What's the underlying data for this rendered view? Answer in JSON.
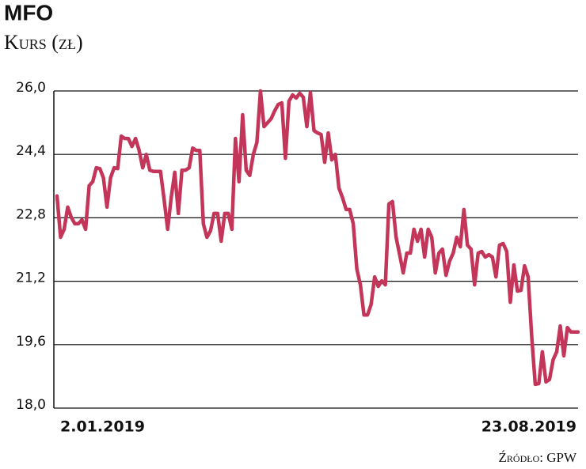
{
  "chart_data": {
    "type": "line",
    "title": "MFO",
    "subtitle": "Kurs (zł)",
    "source": "Źródło: GPW",
    "color": "#c4355a",
    "grid": true,
    "ylim": [
      18,
      26
    ],
    "yticks": [
      {
        "value": 18,
        "label": "18,0"
      },
      {
        "value": 19.6,
        "label": "19,6"
      },
      {
        "value": 21.2,
        "label": "21,2"
      },
      {
        "value": 22.8,
        "label": "22,8"
      },
      {
        "value": 24.4,
        "label": "24,4"
      },
      {
        "value": 26,
        "label": "26,0"
      }
    ],
    "categories": [
      "2.01.2019",
      null,
      null,
      null,
      null,
      null,
      null,
      null,
      null,
      null,
      null,
      null,
      null,
      null,
      null,
      null,
      null,
      null,
      null,
      null,
      null,
      null,
      null,
      null,
      null,
      null,
      null,
      null,
      null,
      null,
      null,
      null,
      null,
      null,
      null,
      null,
      null,
      null,
      null,
      null,
      null,
      null,
      null,
      null,
      null,
      null,
      null,
      null,
      null,
      null,
      null,
      null,
      null,
      null,
      null,
      null,
      null,
      null,
      null,
      null,
      null,
      null,
      null,
      null,
      null,
      null,
      null,
      null,
      null,
      null,
      null,
      null,
      null,
      null,
      null,
      null,
      null,
      null,
      null,
      null,
      null,
      null,
      null,
      null,
      null,
      null,
      null,
      null,
      null,
      null,
      null,
      null,
      null,
      null,
      null,
      null,
      null,
      null,
      null,
      null,
      null,
      null,
      null,
      null,
      null,
      null,
      null,
      null,
      null,
      null,
      null,
      null,
      null,
      null,
      null,
      null,
      null,
      null,
      null,
      null,
      null,
      null,
      null,
      null,
      null,
      null,
      null,
      null,
      null,
      null,
      null,
      null,
      null,
      null,
      null,
      null,
      null,
      null,
      null,
      null,
      null,
      null,
      null,
      null,
      null,
      null,
      "23.08.2019"
    ],
    "values": [
      23.35,
      22.31,
      22.51,
      23.07,
      22.81,
      22.65,
      22.65,
      22.75,
      22.51,
      23.61,
      23.71,
      24.06,
      24.04,
      23.81,
      23.07,
      23.81,
      24.06,
      24.04,
      24.86,
      24.8,
      24.8,
      24.6,
      24.8,
      24.5,
      24.06,
      24.4,
      24.0,
      23.97,
      23.97,
      23.97,
      23.27,
      22.51,
      23.31,
      23.95,
      22.91,
      24.0,
      24.0,
      24.06,
      24.56,
      24.5,
      24.5,
      22.65,
      22.31,
      22.47,
      22.91,
      22.91,
      22.21,
      22.91,
      22.91,
      22.51,
      24.8,
      23.71,
      25.4,
      24.0,
      23.87,
      24.4,
      24.7,
      26.0,
      25.1,
      25.2,
      25.3,
      25.5,
      25.66,
      25.7,
      24.3,
      25.74,
      25.9,
      25.82,
      25.94,
      25.84,
      25.1,
      25.96,
      25.0,
      24.94,
      24.9,
      24.2,
      24.94,
      24.26,
      24.4,
      23.55,
      23.31,
      23.01,
      23.01,
      22.65,
      21.51,
      21.11,
      20.35,
      20.35,
      20.61,
      21.31,
      21.07,
      21.21,
      21.11,
      23.15,
      23.21,
      22.31,
      21.87,
      21.41,
      21.91,
      21.91,
      22.51,
      22.21,
      22.51,
      21.81,
      22.51,
      22.31,
      21.41,
      21.91,
      22.01,
      21.35,
      21.71,
      21.91,
      22.31,
      22.07,
      23.01,
      22.11,
      22.01,
      21.11,
      21.91,
      21.95,
      21.81,
      21.87,
      21.81,
      21.31,
      22.11,
      22.15,
      21.95,
      20.67,
      21.61,
      20.95,
      20.97,
      21.59,
      21.31,
      19.82,
      18.6,
      18.62,
      19.42,
      18.66,
      18.72,
      19.22,
      19.42,
      20.07,
      19.32,
      20.03,
      19.92,
      19.92,
      19.92
    ]
  }
}
